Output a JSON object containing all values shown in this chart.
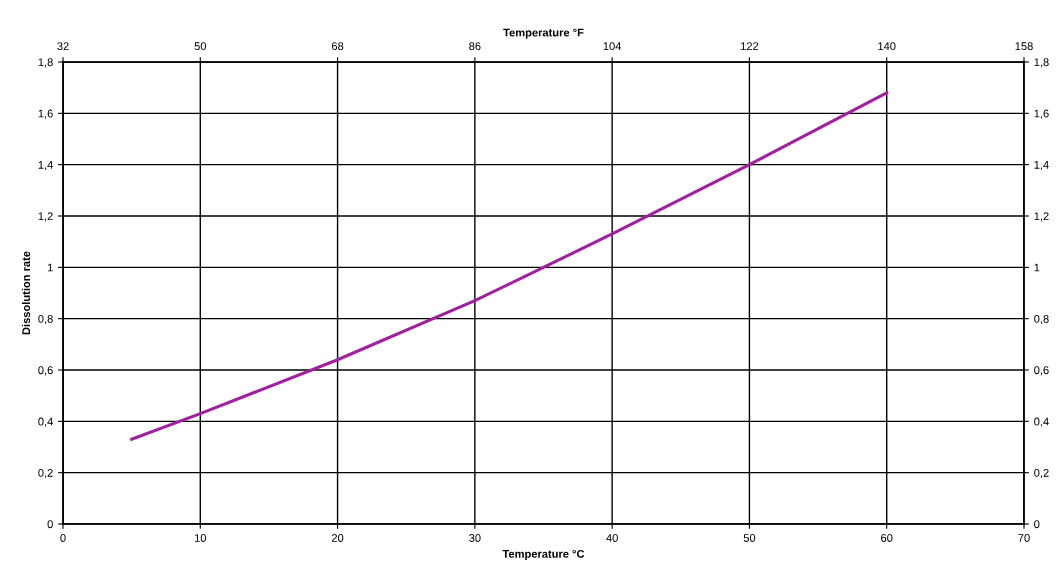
{
  "chart_data": {
    "type": "line",
    "xlabel": "Temperature °C",
    "ylabel": "Dissolution rate",
    "x2label": "Temperature °F",
    "xlim": [
      0,
      70
    ],
    "xticks": [
      0,
      10,
      20,
      30,
      40,
      50,
      60,
      70
    ],
    "x2lim": [
      32,
      158
    ],
    "x2ticks": [
      32,
      50,
      68,
      86,
      104,
      122,
      140,
      158
    ],
    "ylim": [
      0,
      1.8
    ],
    "yticks": [
      0,
      {
        "value": 0.2,
        "label": "0,2"
      },
      {
        "value": 0.4,
        "label": "0,4"
      },
      {
        "value": 0.6,
        "label": "0,6"
      },
      {
        "value": 0.8,
        "label": "0,8"
      },
      1,
      {
        "value": 1.2,
        "label": "1,2"
      },
      {
        "value": 1.4,
        "label": "1,4"
      },
      {
        "value": 1.6,
        "label": "1,6"
      },
      {
        "value": 1.8,
        "label": "1,8"
      }
    ],
    "y2lim": [
      0,
      1.8
    ],
    "y2ticks": [
      0,
      {
        "value": 0.2,
        "label": "0,2"
      },
      {
        "value": 0.4,
        "label": "0,4"
      },
      {
        "value": 0.6,
        "label": "0,6"
      },
      {
        "value": 0.8,
        "label": "0,8"
      },
      1,
      {
        "value": 1.2,
        "label": "1,2"
      },
      {
        "value": 1.4,
        "label": "1,4"
      },
      {
        "value": 1.6,
        "label": "1,6"
      },
      {
        "value": 1.8,
        "label": "1,8"
      }
    ],
    "grid": true,
    "marker": "none",
    "line_style": "solid",
    "series": [
      {
        "color": "#a0209f",
        "x": [
          5,
          10,
          20,
          30,
          35,
          40,
          50,
          60
        ],
        "values": [
          0.33,
          0.43,
          0.64,
          0.87,
          1.0,
          1.13,
          1.4,
          1.68
        ]
      }
    ]
  }
}
